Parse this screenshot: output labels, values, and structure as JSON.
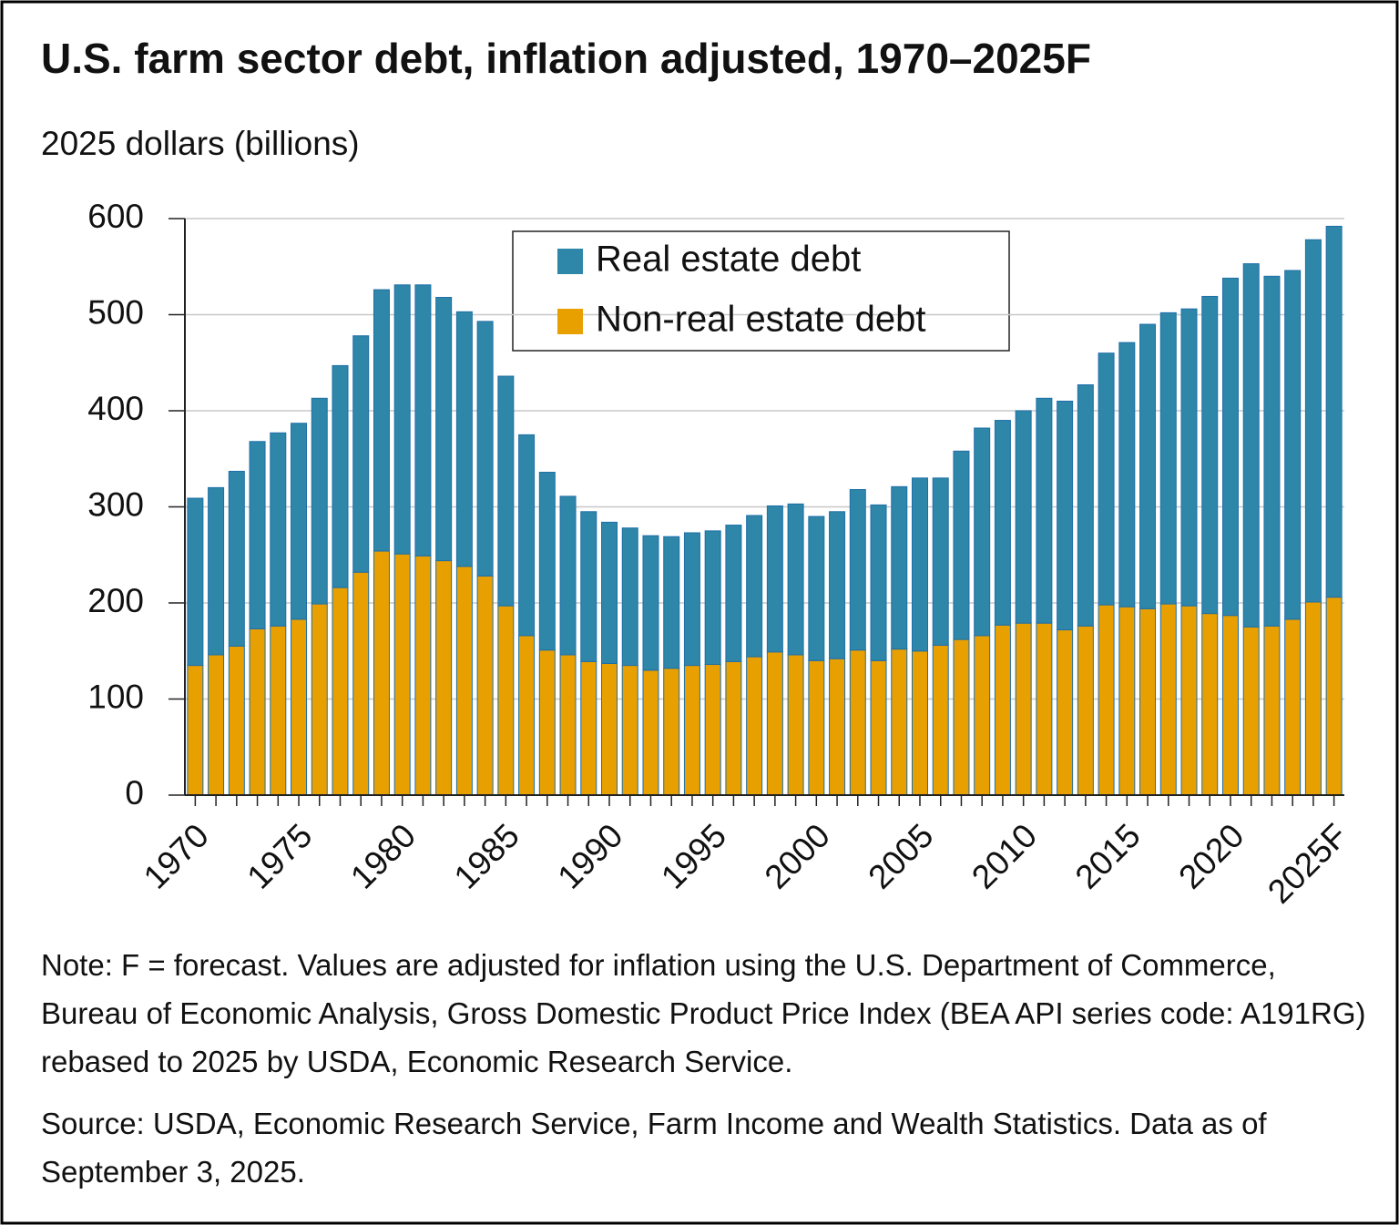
{
  "chart_data": {
    "type": "stacked_bar",
    "title": "U.S. farm sector debt, inflation adjusted, 1970–2025F",
    "y_label": "2025 dollars (billions)",
    "categories": [
      "1970",
      null,
      null,
      null,
      null,
      "1975",
      null,
      null,
      null,
      null,
      "1980",
      null,
      null,
      null,
      null,
      "1985",
      null,
      null,
      null,
      null,
      "1990",
      null,
      null,
      null,
      null,
      "1995",
      null,
      null,
      null,
      null,
      "2000",
      null,
      null,
      null,
      null,
      "2005",
      null,
      null,
      null,
      null,
      "2010",
      null,
      null,
      null,
      null,
      "2015",
      null,
      null,
      null,
      null,
      "2020",
      null,
      null,
      null,
      null,
      "2025F"
    ],
    "series": [
      {
        "name": "Real estate debt",
        "color": "#2e86a8",
        "values": [
          174,
          174,
          182,
          195,
          201,
          204,
          214,
          231,
          246,
          272,
          280,
          282,
          274,
          265,
          265,
          239,
          209,
          185,
          165,
          156,
          147,
          143,
          140,
          137,
          138,
          139,
          142,
          147,
          152,
          157,
          150,
          153,
          167,
          162,
          169,
          180,
          174,
          196,
          216,
          213,
          221,
          234,
          238,
          251,
          262,
          275,
          296,
          303,
          309,
          330,
          351,
          378,
          364,
          363,
          377,
          386
        ]
      },
      {
        "name": "Non-real estate debt",
        "color": "#e8a000",
        "values": [
          135,
          146,
          155,
          173,
          176,
          183,
          199,
          216,
          232,
          254,
          251,
          249,
          244,
          238,
          228,
          197,
          166,
          151,
          146,
          139,
          137,
          135,
          130,
          132,
          135,
          136,
          139,
          144,
          149,
          146,
          140,
          142,
          151,
          140,
          152,
          150,
          156,
          162,
          166,
          177,
          179,
          179,
          172,
          176,
          198,
          196,
          194,
          199,
          197,
          189,
          187,
          175,
          176,
          183,
          201,
          206
        ]
      }
    ],
    "ylim": [
      0,
      600
    ],
    "yticks": [
      0,
      100,
      200,
      300,
      400,
      500,
      600
    ],
    "grid": true,
    "note": "Note: F = forecast. Values are adjusted for inflation using the U.S. Department of Commerce, Bureau of Economic Analysis, Gross Domestic Product Price Index (BEA API series code: A191RG) rebased to 2025 by USDA, Economic Research Service.",
    "source": "Source: USDA, Economic Research Service, Farm Income and Wealth Statistics. Data as of September 3, 2025."
  }
}
